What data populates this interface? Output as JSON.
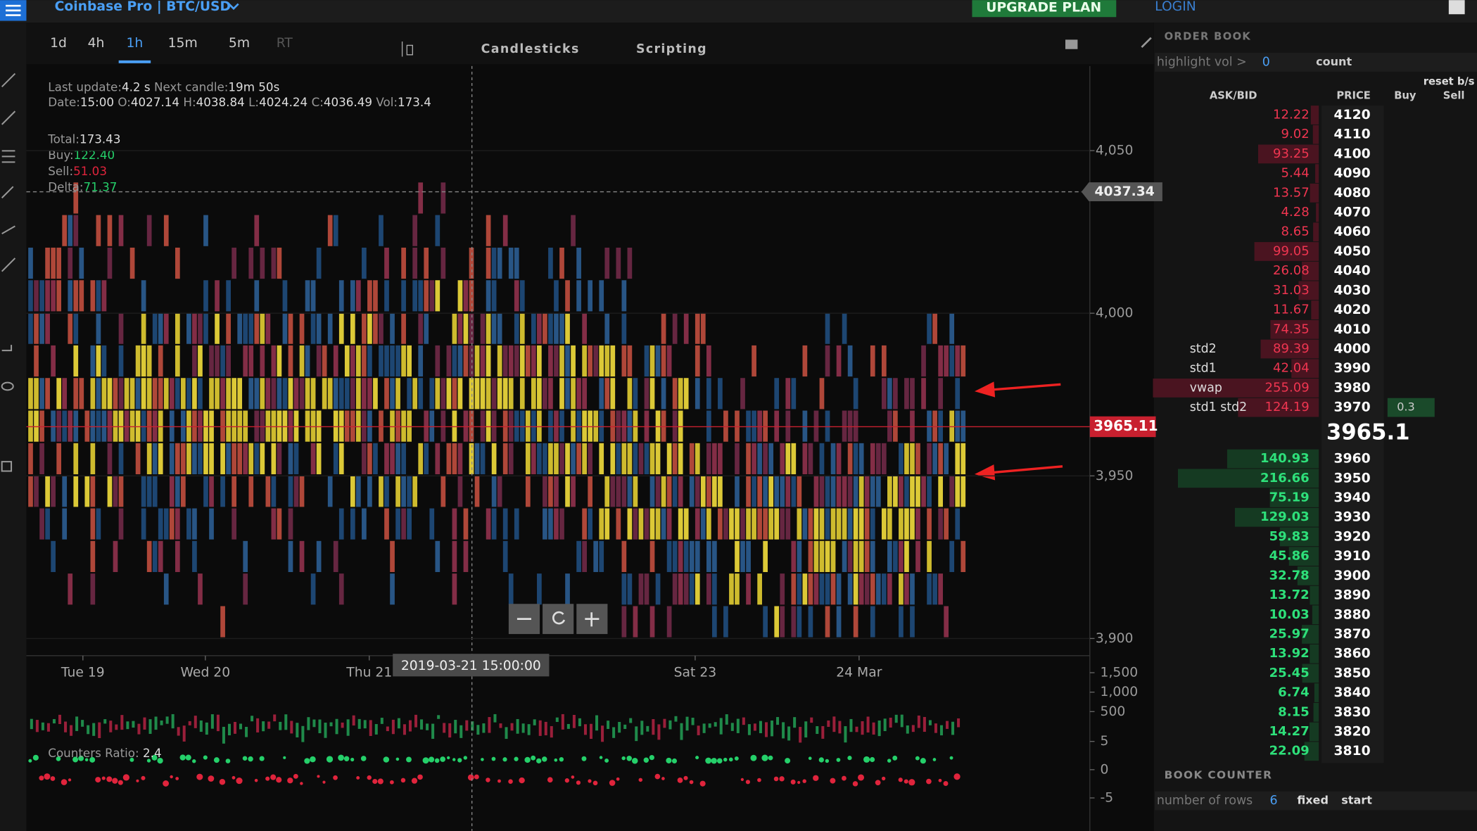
{
  "header": {
    "title": "Coinbase Pro | BTC/USD",
    "upgrade": "UPGRADE PLAN",
    "login": "LOGIN"
  },
  "toolbar": {
    "timeframes": [
      "1d",
      "4h",
      "1h",
      "15m",
      "5m",
      "RT"
    ],
    "active": "1h",
    "tabs": [
      "Candlesticks",
      "Scripting"
    ]
  },
  "info": {
    "last_update_label": "Last update:",
    "last_update": "4.2 s",
    "next_candle_label": "Next candle:",
    "next_candle": "19m 50s",
    "date_label": "Date:",
    "date": "15:00",
    "open_label": "O:",
    "open": 4027.14,
    "high_label": "H:",
    "high": 4038.84,
    "low_label": "L:",
    "low": 4024.24,
    "close_label": "C:",
    "close": 4036.49,
    "vol_label": "Vol:",
    "vol": 173.4,
    "total_label": "Total:",
    "total": 173.43,
    "buy_label": "Buy:",
    "buy": "122.40",
    "sell_label": "Sell:",
    "sell": 51.03,
    "delta_label": "Delta:",
    "delta": 71.37
  },
  "price_axis": {
    "ylim": [
      3895,
      4076
    ],
    "ticks": [
      {
        "value": 4050,
        "label": "4,050"
      },
      {
        "value": 4000,
        "label": "4,000"
      },
      {
        "value": 3950,
        "label": "3,950"
      },
      {
        "value": 3900,
        "label": "3,900"
      }
    ],
    "last_price": 4037.34,
    "current_price": 3965.11
  },
  "time_axis": {
    "labels": [
      "Tue 19",
      "Wed 20",
      "Thu 21",
      "Sat 23",
      "24 Mar"
    ],
    "crosshair": "2019-03-21 15:00:00"
  },
  "volume_axis": {
    "ticks": [
      {
        "value": 1500,
        "label": "1,500"
      },
      {
        "value": 1000,
        "label": "1,000"
      },
      500
    ]
  },
  "counters": {
    "label": "Counters Ratio:",
    "value": 2.4,
    "ticks": [
      5,
      0,
      -5
    ]
  },
  "order_book": {
    "title": "ORDER BOOK",
    "highlight_label": "highlight vol >",
    "highlight_value": 0,
    "count": "count",
    "reset": "reset b/s",
    "columns": [
      "ASK/BID",
      "PRICE",
      "Buy",
      "Sell"
    ],
    "asks": [
      {
        "price": 4120,
        "amount": 12.22
      },
      {
        "price": 4110,
        "amount": 9.02
      },
      {
        "price": 4100,
        "amount": 93.25
      },
      {
        "price": 4090,
        "amount": 5.44
      },
      {
        "price": 4080,
        "amount": 13.57
      },
      {
        "price": 4070,
        "amount": 4.28
      },
      {
        "price": 4060,
        "amount": 8.65
      },
      {
        "price": 4050,
        "amount": 99.05
      },
      {
        "price": 4040,
        "amount": 26.08
      },
      {
        "price": 4030,
        "amount": 31.03
      },
      {
        "price": 4020,
        "amount": 11.67
      },
      {
        "price": 4010,
        "amount": 74.35
      },
      {
        "price": 4000,
        "amount": 89.39,
        "label": "std2"
      },
      {
        "price": 3990,
        "amount": 42.04,
        "label": "std1"
      },
      {
        "price": 3980,
        "amount": 255.09,
        "label": "vwap"
      },
      {
        "price": 3970,
        "amount": 124.19,
        "label": "std1 std2",
        "buy": 0.3
      }
    ],
    "mid_price": 3965.1,
    "bids": [
      {
        "price": 3960,
        "amount": 140.93
      },
      {
        "price": 3950,
        "amount": 216.66
      },
      {
        "price": 3940,
        "amount": 75.19
      },
      {
        "price": 3930,
        "amount": 129.03
      },
      {
        "price": 3920,
        "amount": 59.83
      },
      {
        "price": 3910,
        "amount": 45.86
      },
      {
        "price": 3900,
        "amount": 32.78
      },
      {
        "price": 3890,
        "amount": 13.72
      },
      {
        "price": 3880,
        "amount": 10.03
      },
      {
        "price": 3870,
        "amount": 25.97
      },
      {
        "price": 3860,
        "amount": 13.92
      },
      {
        "price": 3850,
        "amount": 25.45
      },
      {
        "price": 3840,
        "amount": 6.74
      },
      {
        "price": 3830,
        "amount": 8.15
      },
      {
        "price": 3820,
        "amount": 14.27
      },
      {
        "price": 3810,
        "amount": 22.09
      }
    ]
  },
  "book_counter": {
    "title": "BOOK COUNTER",
    "rows_label": "number of rows",
    "rows": 6,
    "fixed": "fixed",
    "start": "start"
  }
}
